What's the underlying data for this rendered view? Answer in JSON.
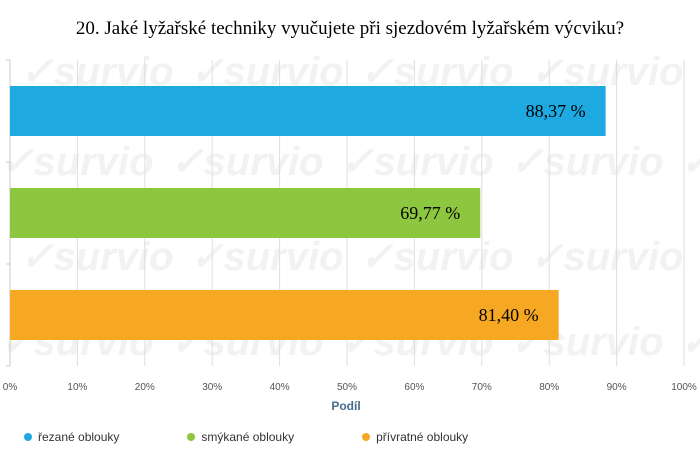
{
  "title": "20. Jaké lyžařské techniky vyučujete při sjezdovém lyžařském výcviku?",
  "watermark_text": "survio",
  "chart_data": {
    "type": "bar",
    "orientation": "horizontal",
    "categories": [
      "řezané oblouky",
      "smýkané oblouky",
      "přívratné oblouky"
    ],
    "values": [
      88.37,
      69.77,
      81.4
    ],
    "value_labels": [
      "88,37 %",
      "69,77 %",
      "81,40 %"
    ],
    "colors": [
      "#1fa9e1",
      "#8dc63f",
      "#f7a823"
    ],
    "xlabel": "Podíl",
    "ylabel": "",
    "xlim": [
      0,
      100
    ],
    "ticks": [
      "0%",
      "10%",
      "20%",
      "30%",
      "40%",
      "50%",
      "60%",
      "70%",
      "80%",
      "90%",
      "100%"
    ],
    "grid": true,
    "legend": "bottom"
  }
}
